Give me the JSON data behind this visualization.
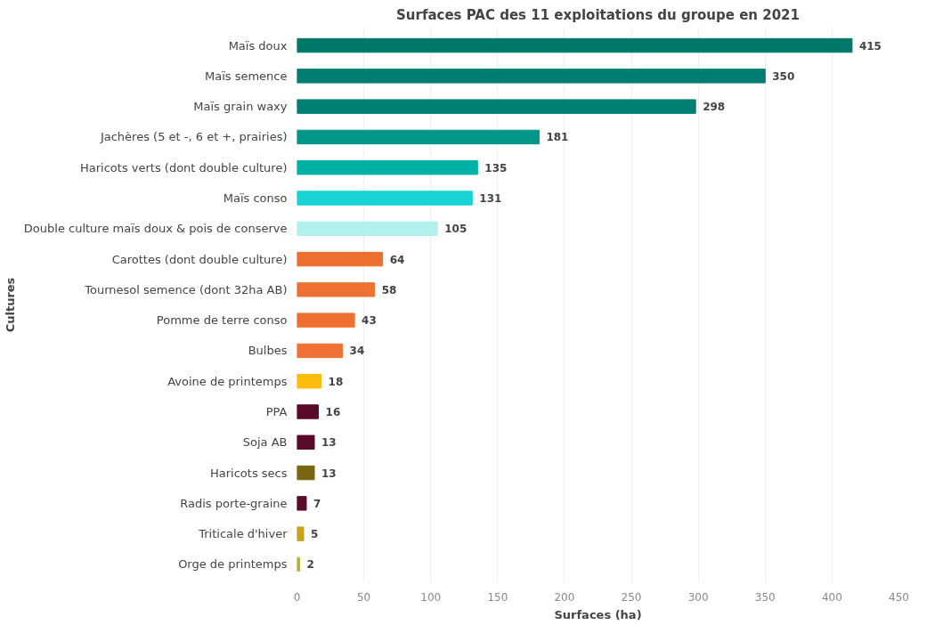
{
  "chart_data": {
    "type": "bar",
    "orientation": "horizontal",
    "title": "Surfaces PAC des 11 exploitations du groupe en 2021",
    "xlabel": "Surfaces (ha)",
    "ylabel": "Cultures",
    "categories": [
      "Maïs doux",
      "Maïs semence",
      "Maïs grain waxy",
      "Jachères (5 et -, 6 et +, prairies)",
      "Haricots verts (dont double culture)",
      "Maïs conso",
      "Double culture maïs doux & pois de conserve",
      "Carottes (dont double culture)",
      "Tournesol semence (dont 32ha AB)",
      "Pomme de terre conso",
      "Bulbes",
      "Avoine de printemps",
      "PPA",
      "Soja AB",
      "Haricots secs",
      "Radis porte-graine",
      "Triticale d'hiver",
      "Orge de printemps"
    ],
    "values": [
      415,
      350,
      298,
      181,
      135,
      131,
      105,
      64,
      58,
      43,
      34,
      18,
      16,
      13,
      13,
      7,
      5,
      2
    ],
    "colors": [
      "#00796b",
      "#007d70",
      "#007f73",
      "#009688",
      "#00b1a6",
      "#17d3d3",
      "#b2f0ee",
      "#ee6f2d",
      "#ef7132",
      "#ee7030",
      "#ef7133",
      "#fbbc0c",
      "#5c0a2a",
      "#5c0a2a",
      "#7a6512",
      "#5c0a2a",
      "#c8a21a",
      "#b8b040"
    ],
    "data_labels": true,
    "xlim": [
      0,
      450
    ],
    "xticks": [
      0,
      50,
      100,
      150,
      200,
      250,
      300,
      350,
      400,
      450
    ],
    "grid": "x"
  }
}
